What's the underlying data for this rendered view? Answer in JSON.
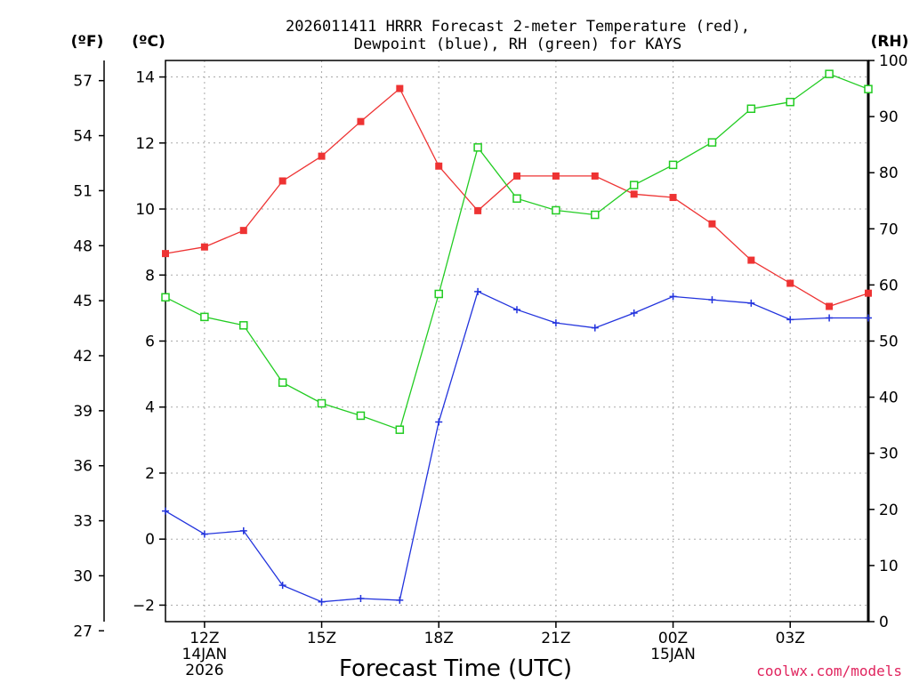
{
  "chart_data": {
    "type": "line",
    "title_line1": "2026011411 HRRR Forecast 2-meter Temperature (red),",
    "title_line2": "Dewpoint (blue), RH (green) for KAYS",
    "xlabel": "Forecast Time (UTC)",
    "credit": "coolwx.com/models",
    "unit_f": "(ºF)",
    "unit_c": "(ºC)",
    "unit_rh": "(RH)",
    "hours": [
      11,
      12,
      13,
      14,
      15,
      16,
      17,
      18,
      19,
      20,
      21,
      22,
      23,
      24,
      25,
      26,
      27,
      28,
      29
    ],
    "x_range_hours": [
      11,
      29
    ],
    "x_ticks": [
      {
        "hour": 12,
        "lines": [
          "12Z",
          "14JAN",
          "2026"
        ]
      },
      {
        "hour": 15,
        "lines": [
          "15Z"
        ]
      },
      {
        "hour": 18,
        "lines": [
          "18Z"
        ]
      },
      {
        "hour": 21,
        "lines": [
          "21Z"
        ]
      },
      {
        "hour": 24,
        "lines": [
          "00Z",
          "15JAN"
        ]
      },
      {
        "hour": 27,
        "lines": [
          "03Z"
        ]
      }
    ],
    "ylim_c": [
      -2.5,
      14.5
    ],
    "ylim_rh": [
      0,
      100
    ],
    "yticks_c": [
      "-2",
      "0",
      "2",
      "4",
      "6",
      "8",
      "10",
      "12",
      "14"
    ],
    "yticks_f": [
      "27",
      "30",
      "33",
      "36",
      "39",
      "42",
      "45",
      "48",
      "51",
      "54",
      "57"
    ],
    "yticks_rh": [
      "0",
      "10",
      "20",
      "30",
      "40",
      "50",
      "60",
      "70",
      "80",
      "90",
      "100"
    ],
    "series": [
      {
        "name": "2-meter Temperature",
        "unit": "C",
        "color": "#ee3333",
        "marker": "filled-square",
        "values": [
          8.65,
          8.85,
          9.35,
          10.85,
          11.6,
          12.65,
          13.65,
          11.3,
          9.95,
          11.0,
          11.0,
          11.0,
          10.45,
          10.35,
          9.55,
          8.45,
          7.75,
          7.05,
          7.45
        ]
      },
      {
        "name": "Dewpoint",
        "unit": "C",
        "color": "#2233dd",
        "marker": "plus",
        "values": [
          0.85,
          0.15,
          0.25,
          -1.4,
          -1.9,
          -1.8,
          -1.85,
          3.55,
          7.5,
          6.95,
          6.55,
          6.4,
          6.85,
          7.35,
          7.25,
          7.15,
          6.65,
          6.7,
          6.7
        ]
      },
      {
        "name": "Relative Humidity",
        "unit": "%",
        "color": "#22cc22",
        "marker": "open-square",
        "values": [
          57.8,
          54.3,
          52.8,
          42.6,
          38.9,
          36.7,
          34.2,
          58.4,
          84.5,
          75.4,
          73.3,
          72.5,
          77.8,
          81.4,
          85.4,
          91.4,
          92.6,
          97.6,
          94.9
        ]
      }
    ]
  }
}
